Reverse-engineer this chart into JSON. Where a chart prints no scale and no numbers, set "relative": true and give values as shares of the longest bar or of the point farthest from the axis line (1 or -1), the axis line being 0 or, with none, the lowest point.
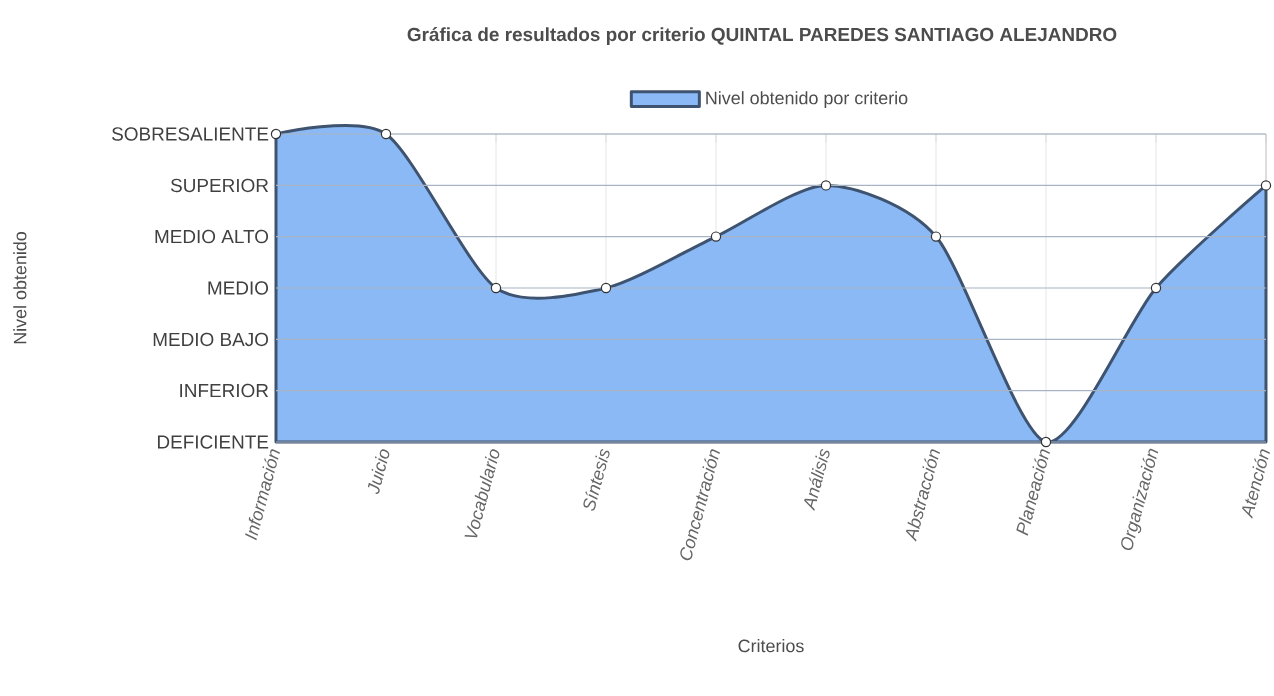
{
  "chart_data": {
    "type": "area",
    "title": "Gráfica de resultados por criterio  QUINTAL PAREDES SANTIAGO ALEJANDRO",
    "xlabel": "Criterios",
    "annotations": [
      "Nivel obtenido"
    ],
    "categories": [
      "Información",
      "Juicio",
      "Vocabulario",
      "Síntesis",
      "Concentración",
      "Análisis",
      "Abstracción",
      "Planeación",
      "Organización",
      "Atención"
    ],
    "series": [
      {
        "name": "Nivel obtenido por criterio",
        "color": "#8ab9f6",
        "values": [
          1,
          1,
          0.5,
          0.5,
          0.667,
          0.833,
          0.667,
          0,
          0.5,
          0.833
        ]
      }
    ],
    "relative": true,
    "ref_lines": [
      {
        "axis": "y",
        "value": 0,
        "label": "DEFICIENTE"
      },
      {
        "axis": "y",
        "value": 0.167,
        "label": "INFERIOR"
      },
      {
        "axis": "y",
        "value": 0.333,
        "label": "MEDIO BAJO"
      },
      {
        "axis": "y",
        "value": 0.5,
        "label": "MEDIO"
      },
      {
        "axis": "y",
        "value": 0.667,
        "label": "MEDIO ALTO"
      },
      {
        "axis": "y",
        "value": 0.833,
        "label": "SUPERIOR"
      },
      {
        "axis": "y",
        "value": 1,
        "label": "SOBRESALIENTE"
      }
    ],
    "grid": "x",
    "legend": "top",
    "marker": "circle",
    "line_style": "solid"
  }
}
